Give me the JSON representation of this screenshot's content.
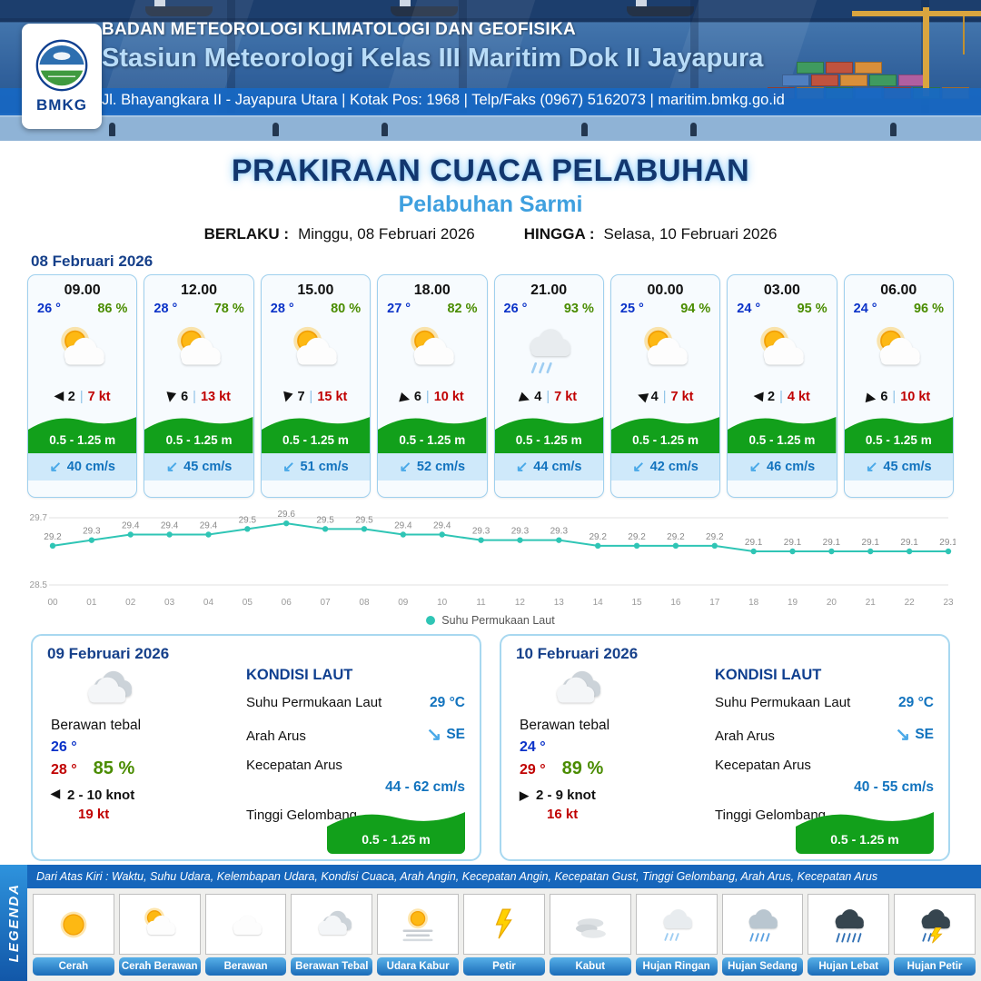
{
  "header": {
    "org": "BADAN METEOROLOGI KLIMATOLOGI DAN GEOFISIKA",
    "station": "Stasiun Meteorologi Kelas III Maritim Dok II Jayapura",
    "address": "Jl. Bhayangkara II - Jayapura Utara | Kotak Pos: 1968 | Telp/Faks (0967) 5162073 | maritim.bmkg.go.id",
    "logo_text": "BMKG"
  },
  "title": {
    "main": "PRAKIRAAN CUACA PELABUHAN",
    "subtitle": "Pelabuhan Sarmi",
    "berlaku_label": "BERLAKU :",
    "berlaku_value": "Minggu, 08 Februari 2026",
    "hingga_label": "HINGGA :",
    "hingga_value": "Selasa, 10 Februari 2026"
  },
  "hourly": {
    "date": "08 Februari 2026",
    "cards": [
      {
        "time": "09.00",
        "temp": "26 °",
        "humidity": "86 %",
        "icon": "cerah-berawan",
        "wind_deg": 180,
        "wind_val": "2",
        "wind_speed": "7 kt",
        "wave": "0.5 - 1.25 m",
        "current": "40 cm/s"
      },
      {
        "time": "12.00",
        "temp": "28 °",
        "humidity": "78 %",
        "icon": "cerah-berawan",
        "wind_deg": 100,
        "wind_val": "6",
        "wind_speed": "13 kt",
        "wave": "0.5 - 1.25 m",
        "current": "45 cm/s"
      },
      {
        "time": "15.00",
        "temp": "28 °",
        "humidity": "80 %",
        "icon": "cerah-berawan",
        "wind_deg": 105,
        "wind_val": "7",
        "wind_speed": "15 kt",
        "wave": "0.5 - 1.25 m",
        "current": "51 cm/s"
      },
      {
        "time": "18.00",
        "temp": "27 °",
        "humidity": "82 %",
        "icon": "cerah-berawan",
        "wind_deg": 15,
        "wind_val": "6",
        "wind_speed": "10 kt",
        "wave": "0.5 - 1.25 m",
        "current": "52 cm/s"
      },
      {
        "time": "21.00",
        "temp": "26 °",
        "humidity": "93 %",
        "icon": "hujan-ringan",
        "wind_deg": 20,
        "wind_val": "4",
        "wind_speed": "7 kt",
        "wave": "0.5 - 1.25 m",
        "current": "44 cm/s"
      },
      {
        "time": "00.00",
        "temp": "25 °",
        "humidity": "94 %",
        "icon": "cerah-berawan",
        "wind_deg": 200,
        "wind_val": "4",
        "wind_speed": "7 kt",
        "wave": "0.5 - 1.25 m",
        "current": "42 cm/s"
      },
      {
        "time": "03.00",
        "temp": "24 °",
        "humidity": "95 %",
        "icon": "cerah-berawan",
        "wind_deg": 185,
        "wind_val": "2",
        "wind_speed": "4 kt",
        "wave": "0.5 - 1.25 m",
        "current": "46 cm/s"
      },
      {
        "time": "06.00",
        "temp": "24 °",
        "humidity": "96 %",
        "icon": "cerah-berawan",
        "wind_deg": 10,
        "wind_val": "6",
        "wind_speed": "10 kt",
        "wave": "0.5 - 1.25 m",
        "current": "45 cm/s"
      }
    ]
  },
  "chart_data": {
    "type": "line",
    "title": "",
    "x": [
      "00",
      "01",
      "02",
      "03",
      "04",
      "05",
      "06",
      "07",
      "08",
      "09",
      "10",
      "11",
      "12",
      "13",
      "14",
      "15",
      "16",
      "17",
      "18",
      "19",
      "20",
      "21",
      "22",
      "23"
    ],
    "series": [
      {
        "name": "Suhu Permukaan Laut",
        "values": [
          29.2,
          29.3,
          29.4,
          29.4,
          29.4,
          29.5,
          29.6,
          29.5,
          29.5,
          29.4,
          29.4,
          29.3,
          29.3,
          29.3,
          29.2,
          29.2,
          29.2,
          29.2,
          29.1,
          29.1,
          29.1,
          29.1,
          29.1,
          29.1
        ]
      }
    ],
    "ylim": [
      28.5,
      29.7
    ],
    "yticks": [
      29.7,
      28.5
    ],
    "line_color": "#2fc5b5",
    "grid": true,
    "legend_position": "bottom"
  },
  "sea_labels": {
    "title": "KONDISI LAUT",
    "sst": "Suhu Permukaan Laut",
    "arah": "Arah Arus",
    "kecepatan": "Kecepatan Arus",
    "tinggi": "Tinggi Gelombang"
  },
  "daily": [
    {
      "date": "09 Februari 2026",
      "icon": "berawan-tebal",
      "condition": "Berawan tebal",
      "temp_min": "26 °",
      "temp_max": "28 °",
      "humidity": "85 %",
      "wind_deg": 180,
      "wind_range": "2  - 10 knot",
      "gust": "19 kt",
      "sst": "29 °C",
      "current_dir": "SE",
      "current_speed": "44  - 62 cm/s",
      "wave": "0.5 - 1.25 m"
    },
    {
      "date": "10 Februari 2026",
      "icon": "berawan-tebal",
      "condition": "Berawan tebal",
      "temp_min": "24 °",
      "temp_max": "29 °",
      "humidity": "89 %",
      "wind_deg": 0,
      "wind_range": "2  - 9 knot",
      "gust": "16 kt",
      "sst": "29 °C",
      "current_dir": "SE",
      "current_speed": "40  - 55 cm/s",
      "wave": "0.5 - 1.25 m"
    }
  ],
  "legend": {
    "title": "LEGENDA",
    "note": "Dari Atas Kiri : Waktu, Suhu Udara, Kelembapan Udara, Kondisi Cuaca, Arah Angin, Kecepatan Angin, Kecepatan Gust, Tinggi Gelombang, Arah Arus, Kecepatan Arus",
    "items": [
      {
        "label": "Cerah",
        "icon": "cerah"
      },
      {
        "label": "Cerah Berawan",
        "icon": "cerah-berawan"
      },
      {
        "label": "Berawan",
        "icon": "berawan"
      },
      {
        "label": "Berawan Tebal",
        "icon": "berawan-tebal"
      },
      {
        "label": "Udara Kabur",
        "icon": "udara-kabur"
      },
      {
        "label": "Petir",
        "icon": "petir"
      },
      {
        "label": "Kabut",
        "icon": "kabut"
      },
      {
        "label": "Hujan Ringan",
        "icon": "hujan-ringan"
      },
      {
        "label": "Hujan Sedang",
        "icon": "hujan-sedang"
      },
      {
        "label": "Hujan Lebat",
        "icon": "hujan-lebat"
      },
      {
        "label": "Hujan Petir",
        "icon": "hujan-petir"
      }
    ]
  }
}
